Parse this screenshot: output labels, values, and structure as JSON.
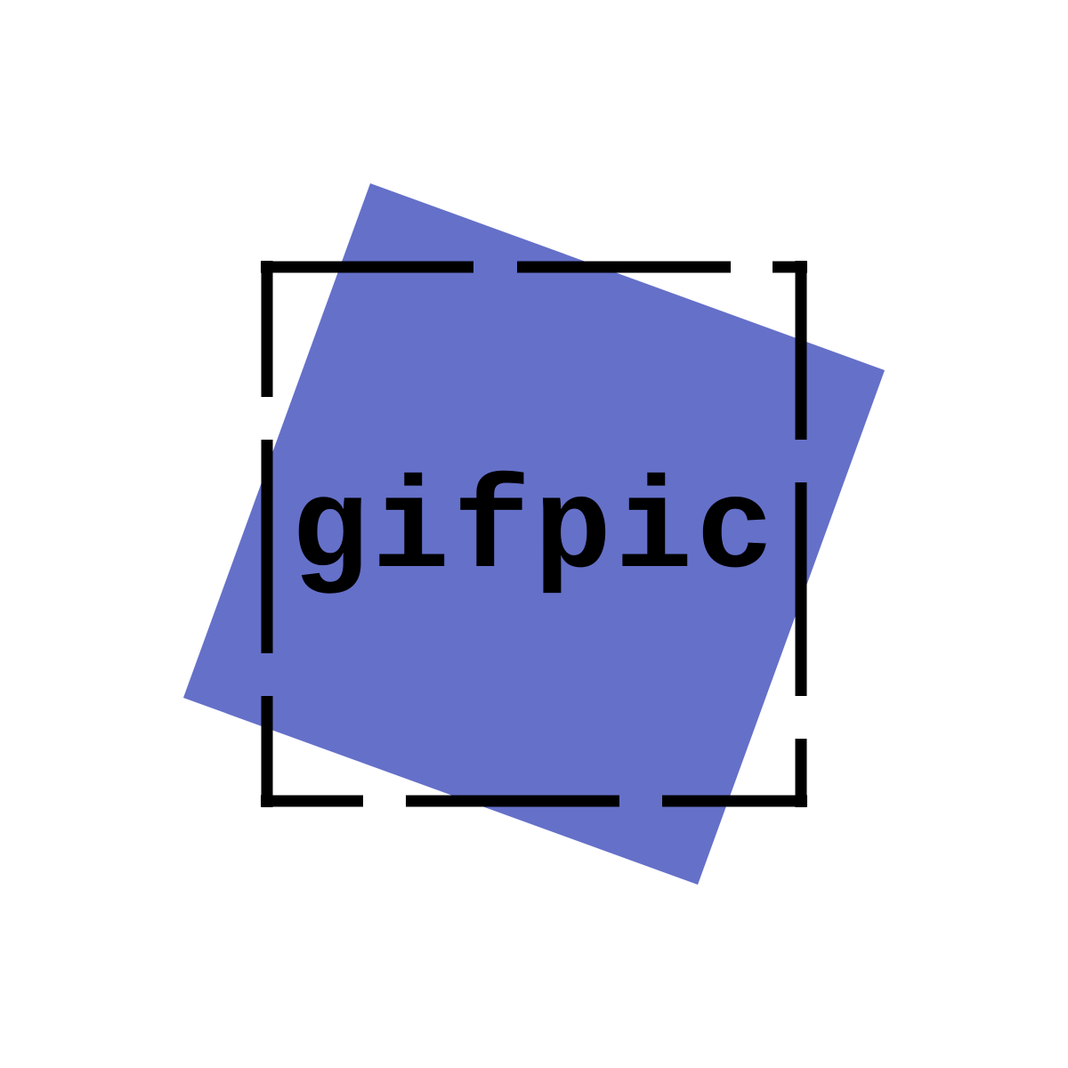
{
  "logo": {
    "wordmark": "gifpic",
    "colors": {
      "background": "#ffffff",
      "accent_square": "#6570c9",
      "frame": "#000000",
      "text": "#000000"
    }
  }
}
